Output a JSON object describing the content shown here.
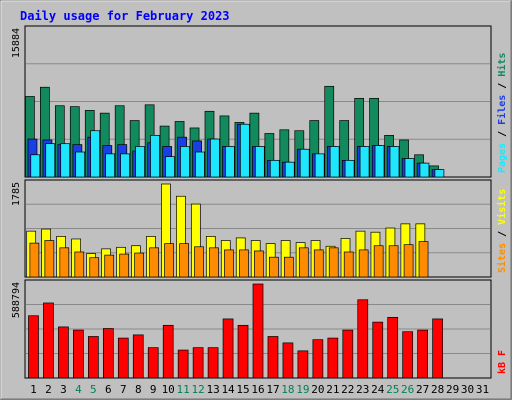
{
  "chart_data": {
    "type": "bar",
    "title": "Daily usage for February 2023",
    "categories": [
      "1",
      "2",
      "3",
      "4",
      "5",
      "6",
      "7",
      "8",
      "9",
      "10",
      "11",
      "12",
      "13",
      "14",
      "15",
      "16",
      "17",
      "18",
      "19",
      "20",
      "21",
      "22",
      "23",
      "24",
      "25",
      "26",
      "27",
      "28",
      "29",
      "30",
      "31"
    ],
    "weekend_days": [
      4,
      5,
      11,
      12,
      18,
      19,
      25,
      26
    ],
    "panels": [
      {
        "name": "pages-files-hits",
        "ymax_label": "15884",
        "ylim": [
          0,
          15884
        ],
        "legend": [
          "Pages",
          "/",
          "Files",
          "/",
          "Hits"
        ],
        "series": [
          {
            "name": "Hits",
            "color": "#138a5e",
            "values": [
              8700,
              9700,
              7700,
              7600,
              7200,
              6900,
              7700,
              6100,
              7800,
              5500,
              6000,
              5300,
              7100,
              6600,
              5900,
              6900,
              4700,
              5100,
              5000,
              6100,
              9800,
              6100,
              8500,
              8500,
              4500,
              4000,
              2400,
              1200,
              0,
              0,
              0
            ]
          },
          {
            "name": "Files",
            "color": "#1a3fe3",
            "values": [
              4100,
              4000,
              3500,
              3500,
              4300,
              3400,
              3500,
              2800,
              3700,
              3300,
              4300,
              3900,
              4100,
              3300,
              5700,
              3300,
              1800,
              1600,
              3000,
              2500,
              3300,
              1800,
              3300,
              3400,
              3300,
              2000,
              1500,
              800,
              0,
              0,
              0
            ]
          },
          {
            "name": "Pages",
            "color": "#1ee6ff",
            "values": [
              2400,
              3600,
              3600,
              2700,
              5000,
              2500,
              2500,
              3300,
              4500,
              2200,
              3300,
              2700,
              4100,
              3300,
              5700,
              3300,
              1800,
              1600,
              3000,
              2500,
              3300,
              1800,
              3300,
              3400,
              3300,
              2000,
              1500,
              800,
              0,
              0,
              0
            ]
          }
        ]
      },
      {
        "name": "sites-visits",
        "ymax_label": "1785",
        "ylim": [
          0,
          1785
        ],
        "legend": [
          "Sites",
          "/",
          "Visits"
        ],
        "series": [
          {
            "name": "Visits",
            "color": "#ffff00",
            "values": [
              880,
              920,
              780,
              730,
              450,
              540,
              570,
              600,
              780,
              1785,
              1550,
              1400,
              780,
              700,
              750,
              700,
              640,
              700,
              660,
              700,
              590,
              740,
              880,
              860,
              940,
              1020,
              1020,
              0,
              0,
              0,
              0
            ]
          },
          {
            "name": "Sites",
            "color": "#ff8c00",
            "values": [
              650,
              700,
              560,
              480,
              370,
              420,
              440,
              460,
              560,
              640,
              640,
              580,
              560,
              520,
              520,
              500,
              380,
              380,
              560,
              520,
              560,
              480,
              520,
              600,
              600,
              620,
              680,
              0,
              0,
              0,
              0
            ]
          }
        ]
      },
      {
        "name": "kb",
        "ymax_label": "588794",
        "ylim": [
          0,
          588794
        ],
        "legend": [
          "kB",
          "F"
        ],
        "series": [
          {
            "name": "kB F",
            "color": "#ff0000",
            "values": [
              390000,
              470000,
              320000,
              300000,
              260000,
              310000,
              250000,
              270000,
              190000,
              330000,
              175000,
              190000,
              190000,
              370000,
              330000,
              588794,
              260000,
              220000,
              170000,
              240000,
              250000,
              300000,
              490000,
              350000,
              380000,
              290000,
              300000,
              370000,
              0,
              0,
              0
            ]
          }
        ]
      }
    ],
    "colors": {
      "background": "#c0c0c0",
      "title": "#0000ff",
      "weekday_label": "#000000",
      "weekend_label": "#00805a",
      "bar_outline": "#000000"
    }
  }
}
